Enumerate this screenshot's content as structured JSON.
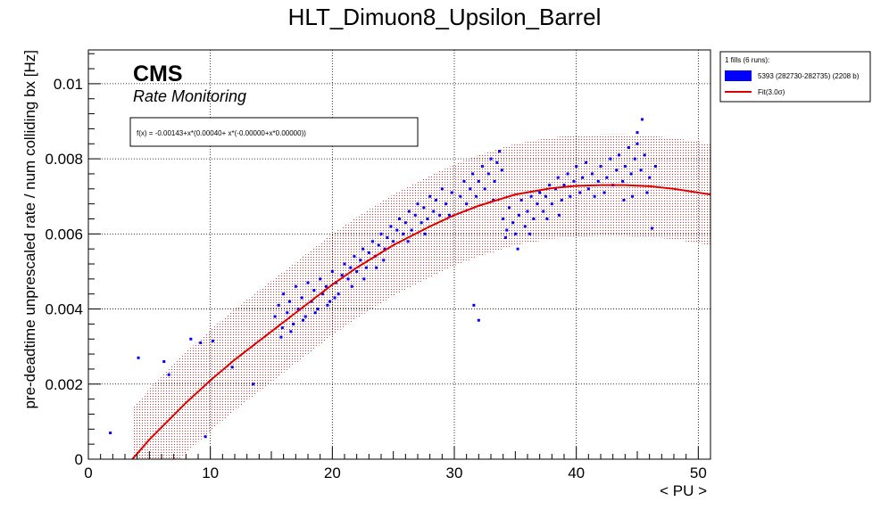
{
  "chart_data": {
    "type": "scatter",
    "title": "HLT_Dimuon8_Upsilon_Barrel",
    "xlabel": "< PU >",
    "ylabel": "pre-deadtime unprescaled rate / num colliding bx [Hz]",
    "xlim": [
      0,
      51
    ],
    "ylim": [
      0,
      0.0109
    ],
    "x_ticks": [
      0,
      10,
      20,
      30,
      40,
      50
    ],
    "x_tick_labels": [
      "0",
      "10",
      "20",
      "30",
      "40",
      "50"
    ],
    "y_ticks": [
      0,
      0.002,
      0.004,
      0.006,
      0.008,
      0.01
    ],
    "y_tick_labels": [
      "0",
      "0.002",
      "0.004",
      "0.006",
      "0.008",
      "0.01"
    ],
    "grid": true,
    "brand": "CMS",
    "subtitle": "Rate Monitoring",
    "formula_text": "f(x) = -0.00143+x*(0.00040+ x*(-0.00000+x*0.00000))",
    "legend": {
      "placement": "top-right-outside",
      "header": "1 fills (6 runs):",
      "entries": [
        {
          "label": "5393 (282730-282735) (2208 b)",
          "color": "#0000ff",
          "kind": "box"
        },
        {
          "label": "Fit(3.0σ)",
          "color": "#dd0000",
          "kind": "line"
        }
      ]
    },
    "fit": {
      "name": "Fit(3.0σ)",
      "color": "#dd0000",
      "x": [
        3.6,
        5,
        8,
        10,
        12,
        15,
        18,
        20,
        22,
        25,
        28,
        30,
        32,
        35,
        38,
        40,
        42,
        44,
        46,
        48,
        51
      ],
      "y": [
        0.0,
        0.00052,
        0.0015,
        0.0021,
        0.00265,
        0.0034,
        0.00415,
        0.00465,
        0.0051,
        0.0057,
        0.0062,
        0.0065,
        0.00675,
        0.00705,
        0.00722,
        0.00728,
        0.0073,
        0.0073,
        0.00727,
        0.0072,
        0.00705
      ],
      "band_half_width": 0.00135
    },
    "series": [
      {
        "name": "5393 (282730-282735) (2208 b)",
        "color": "#0000ff",
        "points": [
          [
            1.8,
            0.0007
          ],
          [
            4.1,
            0.0027
          ],
          [
            6.2,
            0.0026
          ],
          [
            6.6,
            0.00225
          ],
          [
            8.4,
            0.0032
          ],
          [
            9.2,
            0.0031
          ],
          [
            10.2,
            0.00315
          ],
          [
            9.6,
            0.0006
          ],
          [
            13.5,
            0.002
          ],
          [
            11.8,
            0.00245
          ],
          [
            31.6,
            0.0041
          ],
          [
            32.0,
            0.0037
          ],
          [
            45.4,
            0.00905
          ],
          [
            45.0,
            0.0087
          ],
          [
            15.3,
            0.0038
          ],
          [
            15.6,
            0.0041
          ],
          [
            15.9,
            0.0035
          ],
          [
            16.0,
            0.0044
          ],
          [
            16.3,
            0.0039
          ],
          [
            16.5,
            0.0042
          ],
          [
            16.8,
            0.0036
          ],
          [
            17.0,
            0.0046
          ],
          [
            17.2,
            0.004
          ],
          [
            17.5,
            0.0043
          ],
          [
            17.8,
            0.0038
          ],
          [
            18.0,
            0.0047
          ],
          [
            18.3,
            0.0042
          ],
          [
            18.5,
            0.0045
          ],
          [
            18.8,
            0.004
          ],
          [
            19.0,
            0.0048
          ],
          [
            19.2,
            0.0044
          ],
          [
            19.5,
            0.0046
          ],
          [
            19.8,
            0.0042
          ],
          [
            20.0,
            0.005
          ],
          [
            20.3,
            0.0047
          ],
          [
            20.5,
            0.0044
          ],
          [
            20.8,
            0.0049
          ],
          [
            21.0,
            0.0052
          ],
          [
            21.3,
            0.0048
          ],
          [
            21.5,
            0.0051
          ],
          [
            21.8,
            0.0054
          ],
          [
            22.0,
            0.005
          ],
          [
            22.3,
            0.0053
          ],
          [
            22.5,
            0.0056
          ],
          [
            22.8,
            0.0051
          ],
          [
            23.0,
            0.0055
          ],
          [
            23.3,
            0.0058
          ],
          [
            23.5,
            0.0054
          ],
          [
            23.8,
            0.0057
          ],
          [
            24.0,
            0.006
          ],
          [
            24.3,
            0.0056
          ],
          [
            24.5,
            0.0059
          ],
          [
            24.8,
            0.0062
          ],
          [
            25.0,
            0.0058
          ],
          [
            25.3,
            0.0061
          ],
          [
            25.5,
            0.0064
          ],
          [
            25.8,
            0.006
          ],
          [
            26.0,
            0.0063
          ],
          [
            26.3,
            0.0066
          ],
          [
            26.5,
            0.0061
          ],
          [
            26.8,
            0.0065
          ],
          [
            27.0,
            0.0068
          ],
          [
            27.3,
            0.0063
          ],
          [
            27.5,
            0.0067
          ],
          [
            27.8,
            0.0064
          ],
          [
            28.0,
            0.007
          ],
          [
            28.3,
            0.0066
          ],
          [
            28.5,
            0.0069
          ],
          [
            28.8,
            0.0065
          ],
          [
            29.0,
            0.0072
          ],
          [
            29.3,
            0.0068
          ],
          [
            30.5,
            0.007
          ],
          [
            30.8,
            0.0074
          ],
          [
            31.0,
            0.0068
          ],
          [
            31.3,
            0.0072
          ],
          [
            31.5,
            0.0076
          ],
          [
            31.8,
            0.007
          ],
          [
            32.0,
            0.0074
          ],
          [
            32.3,
            0.0078
          ],
          [
            32.5,
            0.0072
          ],
          [
            32.8,
            0.0076
          ],
          [
            33.0,
            0.008
          ],
          [
            33.3,
            0.0074
          ],
          [
            33.5,
            0.0079
          ],
          [
            33.7,
            0.0082
          ],
          [
            33.9,
            0.0077
          ],
          [
            34.0,
            0.0064
          ],
          [
            34.3,
            0.0061
          ],
          [
            34.5,
            0.0067
          ],
          [
            34.8,
            0.0063
          ],
          [
            35.0,
            0.006
          ],
          [
            35.3,
            0.0065
          ],
          [
            35.5,
            0.0069
          ],
          [
            35.8,
            0.0062
          ],
          [
            36.0,
            0.0066
          ],
          [
            36.3,
            0.007
          ],
          [
            36.5,
            0.0064
          ],
          [
            36.8,
            0.0068
          ],
          [
            37.0,
            0.0071
          ],
          [
            37.3,
            0.0066
          ],
          [
            37.5,
            0.007
          ],
          [
            37.8,
            0.0073
          ],
          [
            38.0,
            0.0068
          ],
          [
            38.3,
            0.0072
          ],
          [
            38.5,
            0.0075
          ],
          [
            38.8,
            0.0069
          ],
          [
            39.0,
            0.0073
          ],
          [
            39.3,
            0.0076
          ],
          [
            39.5,
            0.007
          ],
          [
            39.8,
            0.0074
          ],
          [
            40.0,
            0.0078
          ],
          [
            40.3,
            0.0071
          ],
          [
            40.5,
            0.0075
          ],
          [
            40.8,
            0.0079
          ],
          [
            41.0,
            0.0072
          ],
          [
            41.3,
            0.0076
          ],
          [
            41.5,
            0.007
          ],
          [
            41.8,
            0.0074
          ],
          [
            42.0,
            0.0078
          ],
          [
            42.3,
            0.0071
          ],
          [
            42.5,
            0.0075
          ],
          [
            42.8,
            0.008
          ],
          [
            43.0,
            0.0073
          ],
          [
            43.3,
            0.0077
          ],
          [
            43.5,
            0.0081
          ],
          [
            43.8,
            0.0074
          ],
          [
            44.0,
            0.0078
          ],
          [
            44.3,
            0.0083
          ],
          [
            44.5,
            0.0076
          ],
          [
            44.8,
            0.008
          ],
          [
            45.0,
            0.0084
          ],
          [
            45.3,
            0.0077
          ],
          [
            45.6,
            0.0081
          ],
          [
            46.0,
            0.0075
          ],
          [
            46.5,
            0.0078
          ],
          [
            45.8,
            0.0071
          ],
          [
            44.6,
            0.007
          ],
          [
            43.9,
            0.0069
          ],
          [
            46.2,
            0.00615
          ],
          [
            20.2,
            0.0043
          ],
          [
            19.6,
            0.0041
          ],
          [
            18.6,
            0.0039
          ],
          [
            17.6,
            0.0037
          ],
          [
            16.6,
            0.0034
          ],
          [
            15.8,
            0.00325
          ],
          [
            22.6,
            0.0048
          ],
          [
            24.2,
            0.0053
          ],
          [
            26.2,
            0.0058
          ],
          [
            27.6,
            0.006
          ],
          [
            29.6,
            0.0065
          ],
          [
            29.8,
            0.0071
          ],
          [
            33.2,
            0.0069
          ],
          [
            34.2,
            0.0059
          ],
          [
            35.2,
            0.0056
          ],
          [
            36.2,
            0.006
          ],
          [
            37.6,
            0.0064
          ],
          [
            38.6,
            0.0065
          ],
          [
            21.6,
            0.0046
          ],
          [
            23.6,
            0.0051
          ]
        ]
      }
    ]
  }
}
